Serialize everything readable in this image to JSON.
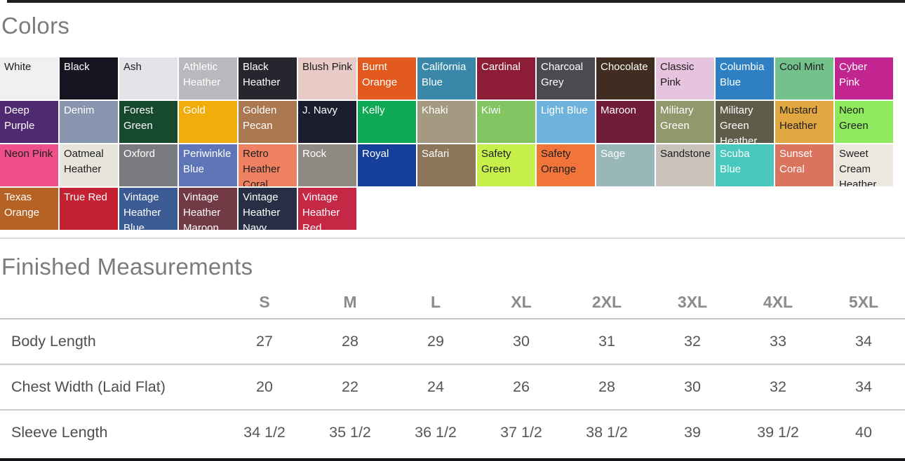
{
  "colors": {
    "heading": "Colors",
    "swatches": [
      {
        "name": "White",
        "bg": "#eff0f2",
        "fg": "#1d1d1d"
      },
      {
        "name": "Black",
        "bg": "#141521",
        "fg": "#ffffff"
      },
      {
        "name": "Ash",
        "bg": "#e3e4e8",
        "fg": "#1d1d1d"
      },
      {
        "name": "Athletic Heather",
        "bg": "#b7b9bd",
        "fg": "#ffffff"
      },
      {
        "name": "Black Heather",
        "bg": "#26262e",
        "fg": "#ffffff"
      },
      {
        "name": "Blush Pink",
        "bg": "#e8cbc6",
        "fg": "#1d1d1d"
      },
      {
        "name": "Burnt Orange",
        "bg": "#e25a1e",
        "fg": "#ffffff"
      },
      {
        "name": "California Blue",
        "bg": "#3a87a9",
        "fg": "#ffffff"
      },
      {
        "name": "Cardinal",
        "bg": "#8d1d37",
        "fg": "#ffffff"
      },
      {
        "name": "Charcoal Grey",
        "bg": "#4b4a50",
        "fg": "#ffffff"
      },
      {
        "name": "Chocolate",
        "bg": "#402c21",
        "fg": "#ffffff"
      },
      {
        "name": "Classic Pink",
        "bg": "#e6c3de",
        "fg": "#1d1d1d"
      },
      {
        "name": "Columbia Blue",
        "bg": "#2f80c3",
        "fg": "#ffffff"
      },
      {
        "name": "Cool Mint",
        "bg": "#74c18c",
        "fg": "#1d1d1d"
      },
      {
        "name": "Cyber Pink",
        "bg": "#c32590",
        "fg": "#ffffff"
      },
      {
        "name": "Deep Purple",
        "bg": "#4f2a71",
        "fg": "#ffffff"
      },
      {
        "name": "Denim",
        "bg": "#8895af",
        "fg": "#ffffff"
      },
      {
        "name": "Forest Green",
        "bg": "#17492e",
        "fg": "#ffffff"
      },
      {
        "name": "Gold",
        "bg": "#f1ad0b",
        "fg": "#ffffff"
      },
      {
        "name": "Golden Pecan",
        "bg": "#aa7851",
        "fg": "#ffffff"
      },
      {
        "name": "J. Navy",
        "bg": "#1b1d2f",
        "fg": "#ffffff"
      },
      {
        "name": "Kelly",
        "bg": "#10a956",
        "fg": "#ffffff"
      },
      {
        "name": "Khaki",
        "bg": "#a49981",
        "fg": "#ffffff"
      },
      {
        "name": "Kiwi",
        "bg": "#82c562",
        "fg": "#ffffff"
      },
      {
        "name": "Light Blue",
        "bg": "#6fb3dc",
        "fg": "#ffffff"
      },
      {
        "name": "Maroon",
        "bg": "#701c39",
        "fg": "#ffffff"
      },
      {
        "name": "Military Green",
        "bg": "#8f996b",
        "fg": "#ffffff"
      },
      {
        "name": "Military Green Heather",
        "bg": "#5e5b49",
        "fg": "#ffffff"
      },
      {
        "name": "Mustard Heather",
        "bg": "#e1a842",
        "fg": "#1d1d1d"
      },
      {
        "name": "Neon Green",
        "bg": "#8fe95f",
        "fg": "#1d1d1d"
      },
      {
        "name": "Neon Pink",
        "bg": "#ef5089",
        "fg": "#1d1d1d"
      },
      {
        "name": "Oatmeal Heather",
        "bg": "#e7e4dc",
        "fg": "#1d1d1d"
      },
      {
        "name": "Oxford",
        "bg": "#7a7b7f",
        "fg": "#ffffff"
      },
      {
        "name": "Periwinkle Blue",
        "bg": "#5e75b7",
        "fg": "#ffffff"
      },
      {
        "name": "Retro Heather Coral",
        "bg": "#ef8163",
        "fg": "#1d1d1d"
      },
      {
        "name": "Rock",
        "bg": "#908a85",
        "fg": "#ffffff"
      },
      {
        "name": "Royal",
        "bg": "#153f99",
        "fg": "#ffffff"
      },
      {
        "name": "Safari",
        "bg": "#8c7558",
        "fg": "#ffffff"
      },
      {
        "name": "Safety Green",
        "bg": "#c7f14a",
        "fg": "#1d1d1d"
      },
      {
        "name": "Safety Orange",
        "bg": "#f1753a",
        "fg": "#1d1d1d"
      },
      {
        "name": "Sage",
        "bg": "#99b7b9",
        "fg": "#ffffff"
      },
      {
        "name": "Sandstone",
        "bg": "#cac3bb",
        "fg": "#1d1d1d"
      },
      {
        "name": "Scuba Blue",
        "bg": "#49c8bd",
        "fg": "#ffffff"
      },
      {
        "name": "Sunset Coral",
        "bg": "#da745f",
        "fg": "#ffffff"
      },
      {
        "name": "Sweet Cream Heather",
        "bg": "#ede8e0",
        "fg": "#1d1d1d"
      },
      {
        "name": "Texas Orange",
        "bg": "#b76225",
        "fg": "#ffffff"
      },
      {
        "name": "True Red",
        "bg": "#c42232",
        "fg": "#ffffff"
      },
      {
        "name": "Vintage Heather Blue",
        "bg": "#3c5b95",
        "fg": "#ffffff"
      },
      {
        "name": "Vintage Heather Maroon",
        "bg": "#713a45",
        "fg": "#ffffff"
      },
      {
        "name": "Vintage Heather Navy",
        "bg": "#272f45",
        "fg": "#ffffff"
      },
      {
        "name": "Vintage Heather Red",
        "bg": "#c52845",
        "fg": "#ffffff"
      }
    ]
  },
  "measurements": {
    "heading": "Finished Measurements",
    "sizes": [
      "S",
      "M",
      "L",
      "XL",
      "2XL",
      "3XL",
      "4XL",
      "5XL"
    ],
    "rows": [
      {
        "label": "Body Length",
        "values": [
          "27",
          "28",
          "29",
          "30",
          "31",
          "32",
          "33",
          "34"
        ]
      },
      {
        "label": "Chest Width (Laid Flat)",
        "values": [
          "20",
          "22",
          "24",
          "26",
          "28",
          "30",
          "32",
          "34"
        ]
      },
      {
        "label": "Sleeve Length",
        "values": [
          "34 1/2",
          "35 1/2",
          "36 1/2",
          "37 1/2",
          "38 1/2",
          "39",
          "39 1/2",
          "40"
        ]
      }
    ]
  }
}
